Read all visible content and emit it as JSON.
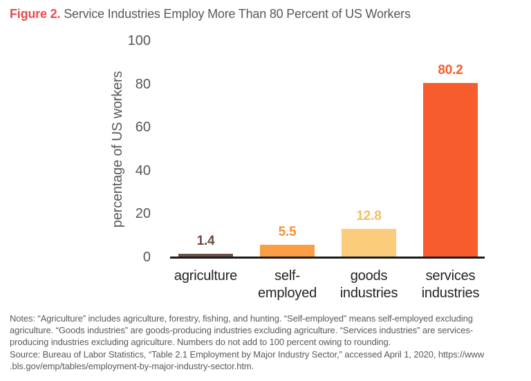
{
  "title": {
    "figure_label": "Figure 2.",
    "text": "Service Industries Employ More Than 80 Percent of US Workers"
  },
  "chart_data": {
    "type": "bar",
    "title": "Figure 2. Service Industries Employ More Than 80 Percent of US Workers",
    "categories": [
      "agriculture",
      "self-employed",
      "goods industries",
      "services industries"
    ],
    "category_lines": [
      [
        "agriculture"
      ],
      [
        "self-",
        "employed"
      ],
      [
        "goods",
        "industries"
      ],
      [
        "services",
        "industries"
      ]
    ],
    "values": [
      1.4,
      5.5,
      12.8,
      80.2
    ],
    "data_labels": [
      "1.4",
      "5.5",
      "12.8",
      "80.2"
    ],
    "bar_colors": [
      "#6C5146",
      "#FA9D45",
      "#FACC7C",
      "#F65C2C"
    ],
    "label_colors": [
      "#6B4B3E",
      "#F78F35",
      "#F5BD60",
      "#F65C2C"
    ],
    "xlabel": "",
    "ylabel": "percentage of US workers",
    "ylim": [
      0,
      100
    ],
    "yticks": [
      0,
      20,
      40,
      60,
      80,
      100
    ],
    "grid": false,
    "legend": false
  },
  "notes": {
    "lines": [
      "Notes: “Agriculture” includes agriculture, forestry, fishing, and hunting. “Self-employed” means self-employed excluding",
      "agriculture. “Goods industries” are goods-producing industries excluding agriculture. “Services industries” are services-",
      "producing industries excluding agriculture. Numbers do not add to 100 percent owing to rounding.",
      "Source: Bureau of Labor Statistics, “Table 2.1 Employment by Major Industry Sector,” accessed April 1, 2020, https://www",
      ".bls.gov/emp/tables/employment-by-major-industry-sector.htm."
    ]
  },
  "colors": {
    "figure_label_red": "#EA4A4D",
    "title_gray": "#58595B",
    "axis_text_gray": "#55565B",
    "category_text": "#231F20",
    "axis_line": "#1A1A1A",
    "background": "#FFFFFF"
  }
}
